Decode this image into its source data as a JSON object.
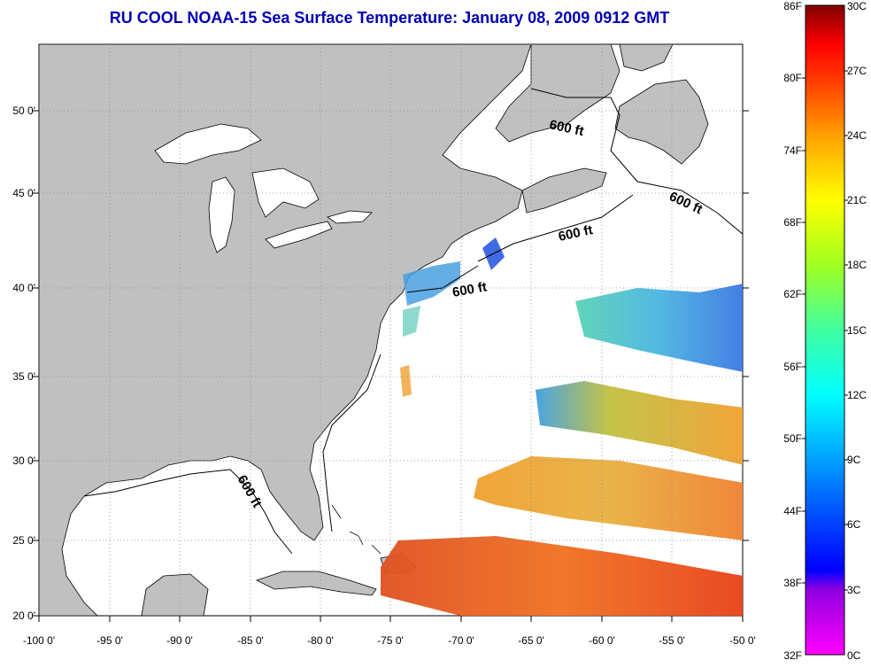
{
  "title": "RU COOL  NOAA-15  Sea Surface Temperature:  January 08, 2009 0912 GMT",
  "x_ticks": [
    "-100 0'",
    "-95 0'",
    "-90 0'",
    "-85 0'",
    "-80 0'",
    "-75 0'",
    "-70 0'",
    "-65 0'",
    "-60 0'",
    "-55 0'",
    "-50 0'"
  ],
  "y_ticks": [
    "50 0'",
    "45 0'",
    "40 0'",
    "35 0'",
    "30 0'",
    "25 0'",
    "20 0'"
  ],
  "colorbar": {
    "fahrenheit": [
      "86F",
      "80F",
      "74F",
      "68F",
      "62F",
      "56F",
      "50F",
      "44F",
      "38F",
      "32F"
    ],
    "celsius": [
      "30C",
      "27C",
      "24C",
      "21C",
      "18C",
      "15C",
      "12C",
      "9C",
      "6C",
      "3C",
      "0C"
    ]
  },
  "isobath_labels": [
    "600 ft",
    "600 ft",
    "600 ft",
    "600 ft",
    "600 ft"
  ],
  "colors": {
    "land": "#c0c0c0",
    "title": "#0000b4",
    "ocean": "#ffffff"
  }
}
